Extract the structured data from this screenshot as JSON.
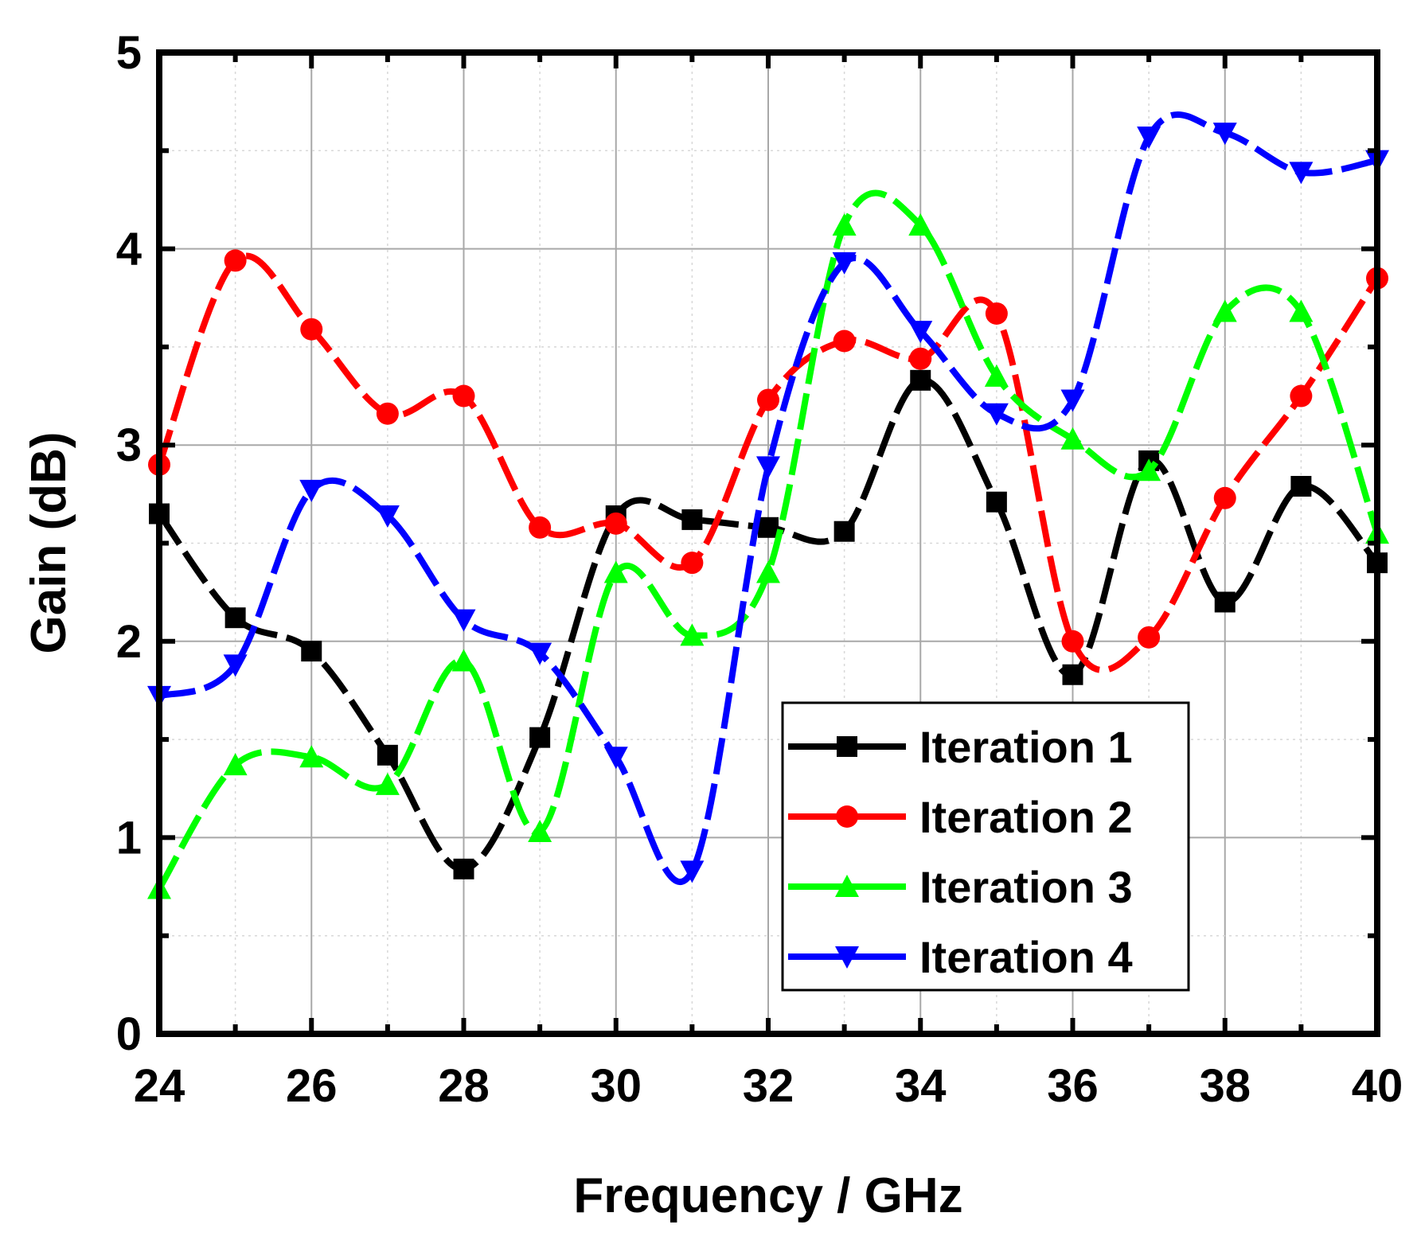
{
  "chart_data": {
    "type": "line",
    "title": "",
    "xlabel": "Frequency / GHz",
    "ylabel": "Gain (dB)",
    "xlim": [
      24,
      40
    ],
    "ylim": [
      0,
      5
    ],
    "xticks": [
      24,
      26,
      28,
      30,
      32,
      34,
      36,
      38,
      40
    ],
    "xtick_labels": [
      "24",
      "26",
      "28",
      "30",
      "32",
      "34",
      "36",
      "38",
      "40"
    ],
    "yticks": [
      0,
      1,
      2,
      3,
      4,
      5
    ],
    "ytick_labels": [
      "0",
      "1",
      "2",
      "3",
      "4",
      "5"
    ],
    "grid": true,
    "legend_position": "lower-right",
    "x": [
      24,
      25,
      26,
      27,
      28,
      29,
      30,
      31,
      32,
      33,
      34,
      35,
      36,
      37,
      38,
      39,
      40
    ],
    "series": [
      {
        "name": "Iteration 1",
        "color": "#000000",
        "marker": "square",
        "values": [
          2.65,
          2.12,
          1.95,
          1.42,
          0.84,
          1.51,
          2.64,
          2.62,
          2.58,
          2.56,
          3.33,
          2.71,
          1.83,
          2.92,
          2.2,
          2.79,
          2.4
        ]
      },
      {
        "name": "Iteration 2",
        "color": "#ff0000",
        "marker": "circle",
        "values": [
          2.9,
          3.94,
          3.59,
          3.16,
          3.25,
          2.58,
          2.6,
          2.4,
          3.23,
          3.53,
          3.44,
          3.67,
          2.0,
          2.02,
          2.73,
          3.25,
          3.85
        ]
      },
      {
        "name": "Iteration 3",
        "color": "#00ff00",
        "marker": "triangle-up",
        "values": [
          0.74,
          1.37,
          1.41,
          1.27,
          1.9,
          1.03,
          2.35,
          2.03,
          2.35,
          4.12,
          4.12,
          3.35,
          3.03,
          2.87,
          3.68,
          3.68,
          2.55
        ]
      },
      {
        "name": "Iteration 4",
        "color": "#0000ff",
        "marker": "triangle-down",
        "values": [
          1.72,
          1.88,
          2.77,
          2.64,
          2.11,
          1.94,
          1.41,
          0.83,
          2.89,
          3.93,
          3.58,
          3.16,
          3.23,
          4.57,
          4.59,
          4.39,
          4.45
        ]
      }
    ]
  }
}
